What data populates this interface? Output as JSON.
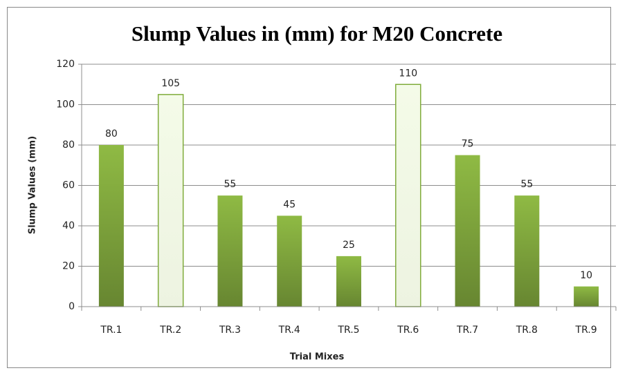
{
  "chart_data": {
    "type": "bar",
    "title": "Slump Values in (mm) for M20 Concrete",
    "x_label": "Trial Mixes",
    "y_label": "Slump Values (mm)",
    "categories": [
      "TR.1",
      "TR.2",
      "TR.3",
      "TR.4",
      "TR.5",
      "TR.6",
      "TR.7",
      "TR.8",
      "TR.9"
    ],
    "values": [
      80,
      105,
      55,
      45,
      25,
      110,
      75,
      55,
      10
    ],
    "colors": [
      "#8fba44",
      "#f4fbe8",
      "#8fba44",
      "#8fba44",
      "#8fba44",
      "#f4fbe8",
      "#8fba44",
      "#8fba44",
      "#8fba44"
    ],
    "ylim": [
      0,
      120
    ],
    "yticks": [
      0,
      20,
      40,
      60,
      80,
      100,
      120
    ],
    "grid": true
  }
}
